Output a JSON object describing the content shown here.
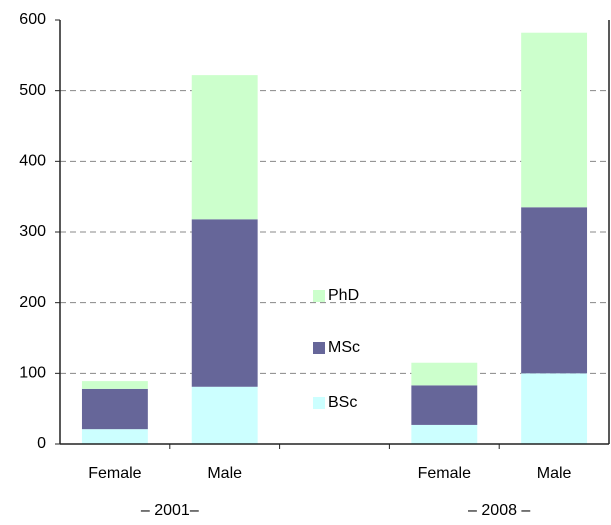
{
  "chart_data": {
    "type": "stacked_bar",
    "categories": [
      "Female",
      "Male",
      null,
      "Female",
      "Male"
    ],
    "groups": [
      "– 2001–",
      "– 2008 –"
    ],
    "series": [
      {
        "name": "BSc",
        "color": "#ccffff",
        "values": [
          21,
          81,
          null,
          27,
          100
        ]
      },
      {
        "name": "MSc",
        "color": "#666699",
        "values": [
          57,
          237,
          null,
          56,
          235
        ]
      },
      {
        "name": "PhD",
        "color": "#ccffcc",
        "values": [
          11,
          204,
          null,
          32,
          247
        ]
      }
    ],
    "ylim": [
      0,
      600
    ],
    "yticks": [
      0,
      100,
      200,
      300,
      400,
      500,
      600
    ],
    "grid": true
  }
}
